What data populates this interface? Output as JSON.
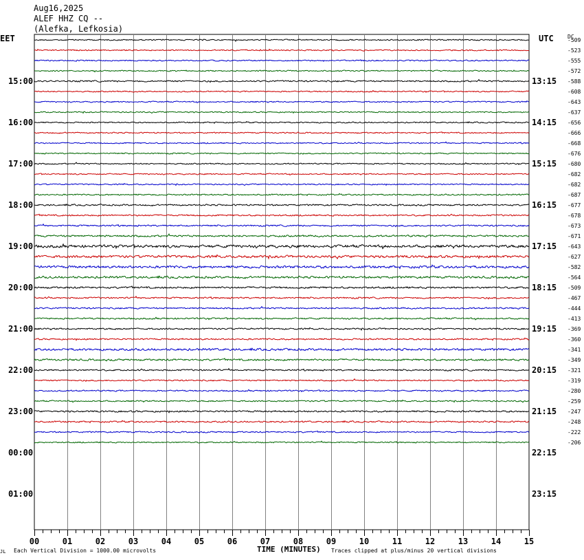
{
  "header": {
    "date": "Aug16,2025",
    "station": "ALEF HHZ CQ --",
    "location": "(Alefka, Lefkosia)"
  },
  "left_zone_label": "EET",
  "right_zone_label": "UTC",
  "dc_label": "DC",
  "footer": {
    "left_mark": "JL",
    "scale_note": "Each Vertical Division = 1000.00 microvolts",
    "xlabel": "TIME (MINUTES)",
    "clip_note": "Traces clipped at plus/minus 20 vertical divisions"
  },
  "chart_data": {
    "type": "line",
    "title": "",
    "xlabel": "TIME (MINUTES)",
    "ylabel": "",
    "xlim": [
      0,
      15
    ],
    "x_ticks": [
      "00",
      "01",
      "02",
      "03",
      "04",
      "05",
      "06",
      "07",
      "08",
      "09",
      "10",
      "11",
      "12",
      "13",
      "14",
      "15"
    ],
    "hour_labels_left": [
      "15:00",
      "16:00",
      "17:00",
      "18:00",
      "19:00",
      "20:00",
      "21:00",
      "22:00",
      "23:00",
      "00:00",
      "01:00"
    ],
    "hour_labels_right": [
      "13:15",
      "14:15",
      "15:15",
      "16:15",
      "17:15",
      "18:15",
      "19:15",
      "20:15",
      "21:15",
      "22:15",
      "23:15"
    ],
    "trace_colors": [
      "#000000",
      "#cc0000",
      "#0000cc",
      "#006600"
    ],
    "trace_count": 40,
    "trace_offsets": [
      "-509",
      "-523",
      "-555",
      "-572",
      "-588",
      "-608",
      "-643",
      "-637",
      "-656",
      "-666",
      "-668",
      "-676",
      "-680",
      "-682",
      "-682",
      "-687",
      "-677",
      "-678",
      "-673",
      "-671",
      "-643",
      "-627",
      "-582",
      "-564",
      "-509",
      "-467",
      "-444",
      "-413",
      "-369",
      "-360",
      "-341",
      "-349",
      "-321",
      "-319",
      "-280",
      "-259",
      "-247",
      "-248",
      "-222",
      "-206"
    ],
    "trace_amplitude": [
      0.8,
      0.8,
      0.8,
      0.8,
      1.0,
      0.8,
      0.8,
      0.8,
      0.8,
      0.8,
      0.8,
      0.8,
      0.8,
      0.8,
      0.8,
      0.9,
      1.0,
      1.0,
      1.0,
      1.2,
      1.8,
      1.6,
      1.6,
      1.4,
      1.2,
      1.0,
      1.0,
      1.0,
      1.0,
      1.0,
      1.4,
      1.2,
      1.0,
      0.9,
      0.9,
      0.9,
      1.1,
      1.0,
      0.9,
      0.8
    ]
  }
}
